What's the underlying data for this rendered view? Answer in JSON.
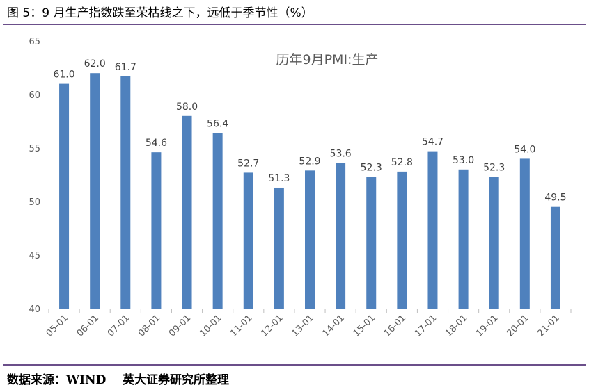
{
  "figure_title": "图 5：9 月生产指数跌至荣枯线之下，远低于季节性（%）",
  "source": "数据来源：WIND    英大证券研究所整理",
  "chart_data": {
    "type": "bar",
    "title": "历年9月PMI:生产",
    "xlabel": "",
    "ylabel": "",
    "categories": [
      "05-01",
      "06-01",
      "07-01",
      "08-01",
      "09-01",
      "10-01",
      "11-01",
      "12-01",
      "13-01",
      "14-01",
      "15-01",
      "16-01",
      "17-01",
      "18-01",
      "19-01",
      "20-01",
      "21-01"
    ],
    "values": [
      61.0,
      62.0,
      61.7,
      54.6,
      58.0,
      56.4,
      52.7,
      51.3,
      52.9,
      53.6,
      52.3,
      52.8,
      54.7,
      53.0,
      52.3,
      54.0,
      49.5
    ],
    "value_labels": [
      "61.0",
      "62.0",
      "61.7",
      "54.6",
      "58.0",
      "56.4",
      "52.7",
      "51.3",
      "52.9",
      "53.6",
      "52.3",
      "52.8",
      "54.7",
      "53.0",
      "52.3",
      "54.0",
      "49.5"
    ],
    "yticks": [
      "40",
      "45",
      "50",
      "55",
      "60",
      "65"
    ],
    "ylim": [
      40,
      65
    ],
    "grid": false,
    "legend": "none",
    "bar_color": "#4f81bd"
  }
}
